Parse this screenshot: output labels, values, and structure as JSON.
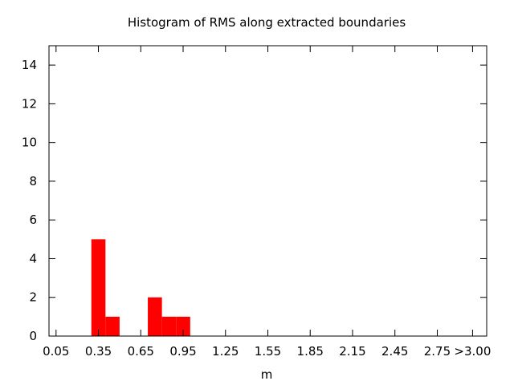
{
  "chart_data": {
    "type": "bar",
    "title": "Histogram of RMS along extracted boundaries",
    "xlabel": "m",
    "ylabel": "",
    "x_tick_labels": [
      "0.05",
      "0.35",
      "0.65",
      "0.95",
      "1.25",
      "1.55",
      "1.85",
      "2.15",
      "2.45",
      "2.75",
      ">3.00"
    ],
    "x_tick_values": [
      0.05,
      0.35,
      0.65,
      0.95,
      1.25,
      1.55,
      1.85,
      2.15,
      2.45,
      2.75,
      3.0
    ],
    "y_tick_values": [
      0,
      2,
      4,
      6,
      8,
      10,
      12,
      14
    ],
    "xlim": [
      0.0,
      3.1
    ],
    "ylim": [
      0,
      15
    ],
    "bin_width": 0.1,
    "bins": [
      {
        "x": 0.35,
        "count": 5
      },
      {
        "x": 0.45,
        "count": 1
      },
      {
        "x": 0.75,
        "count": 2
      },
      {
        "x": 0.85,
        "count": 1
      },
      {
        "x": 0.95,
        "count": 1
      }
    ],
    "bar_color": "#ff0000",
    "grid": false,
    "legend": "none"
  }
}
